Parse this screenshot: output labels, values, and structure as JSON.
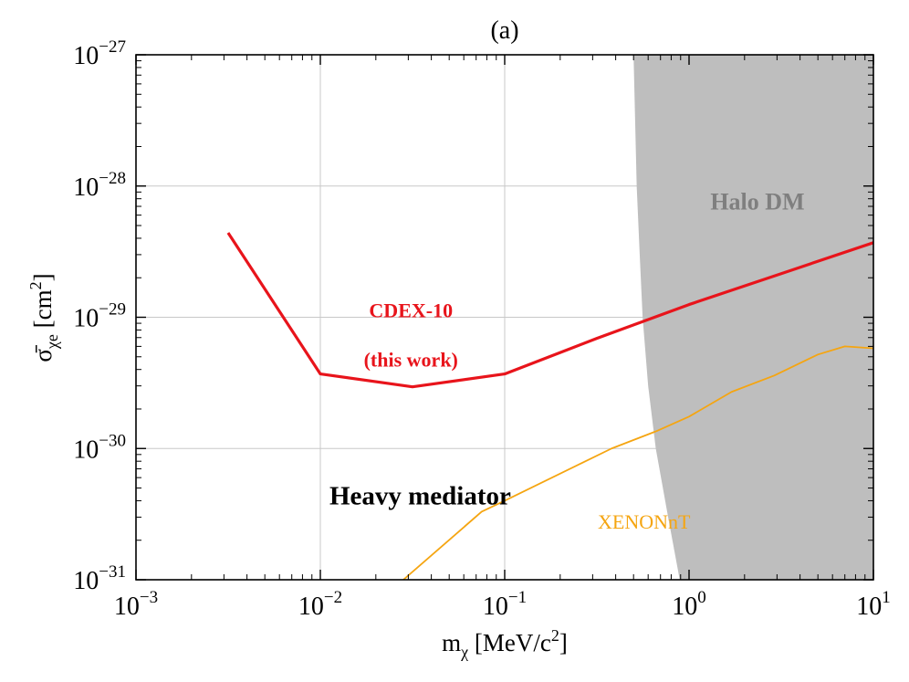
{
  "chart_data": {
    "type": "line",
    "title": "(a)",
    "xlabel": {
      "base": "m",
      "sub": "χ",
      "unit": " [MeV/c",
      "sup": "2",
      "close": "]"
    },
    "ylabel": {
      "base": "σ̄",
      "sub": "χe",
      "unit": " [cm",
      "sup": "2",
      "close": "]"
    },
    "x_scale": "log",
    "y_scale": "log",
    "xlim": [
      0.001,
      10
    ],
    "ylim": [
      1e-31,
      1e-27
    ],
    "grid": true,
    "x_ticks": [
      {
        "value": 0.001,
        "base": "10",
        "exp": "−3"
      },
      {
        "value": 0.01,
        "base": "10",
        "exp": "−2"
      },
      {
        "value": 0.1,
        "base": "10",
        "exp": "−1"
      },
      {
        "value": 1,
        "base": "10",
        "exp": "0"
      },
      {
        "value": 10,
        "base": "10",
        "exp": "1"
      }
    ],
    "y_ticks": [
      {
        "value": 1e-31,
        "base": "10",
        "exp": "−31"
      },
      {
        "value": 1e-30,
        "base": "10",
        "exp": "−30"
      },
      {
        "value": 1e-29,
        "base": "10",
        "exp": "−29"
      },
      {
        "value": 1e-28,
        "base": "10",
        "exp": "−28"
      },
      {
        "value": 1e-27,
        "base": "10",
        "exp": "−27"
      }
    ],
    "series": [
      {
        "name": "CDEX-10 (this work)",
        "color": "#e8141b",
        "x": [
          0.00316,
          0.01,
          0.0316,
          0.1,
          0.316,
          1,
          3.16,
          10
        ],
        "y": [
          4.4e-29,
          3.7e-30,
          2.95e-30,
          3.7e-30,
          6.9e-30,
          1.25e-29,
          2.15e-29,
          3.7e-29
        ]
      },
      {
        "name": "XENONnT",
        "color": "#f5a511",
        "x": [
          0.0282,
          0.075,
          0.1,
          0.38,
          0.66,
          1,
          1.7,
          2.9,
          5,
          7,
          10
        ],
        "y": [
          1e-31,
          3.3e-31,
          4e-31,
          1e-30,
          1.35e-30,
          1.75e-30,
          2.7e-30,
          3.6e-30,
          5.2e-30,
          6e-30,
          5.8e-30
        ]
      }
    ],
    "regions": [
      {
        "name": "Halo DM",
        "color": "#bebebe",
        "boundary_x": [
          0.89,
          0.77,
          0.66,
          0.6,
          0.56,
          0.54,
          0.52,
          0.5
        ],
        "boundary_y": [
          1e-31,
          3e-31,
          1e-30,
          3e-30,
          1e-29,
          3e-29,
          1e-28,
          1e-27
        ]
      }
    ],
    "annotations": [
      {
        "id": "cdex_line1",
        "text": "CDEX-10",
        "x": 0.031,
        "y": 1e-29,
        "color": "#e8141b"
      },
      {
        "id": "cdex_line2",
        "text": "(this work)",
        "x": 0.031,
        "y": 4.2e-30,
        "color": "#e8141b"
      },
      {
        "id": "heavy",
        "text": "Heavy mediator",
        "x": 0.0112,
        "y": 3.75e-31,
        "color": "#000000"
      },
      {
        "id": "xenon",
        "text": "XENONnT",
        "x": 0.32,
        "y": 2.45e-31,
        "color": "#f5a511"
      },
      {
        "id": "halo",
        "text": "Halo DM",
        "x": 2.35,
        "y": 6.6e-29,
        "color": "#7f7f7f"
      }
    ]
  }
}
